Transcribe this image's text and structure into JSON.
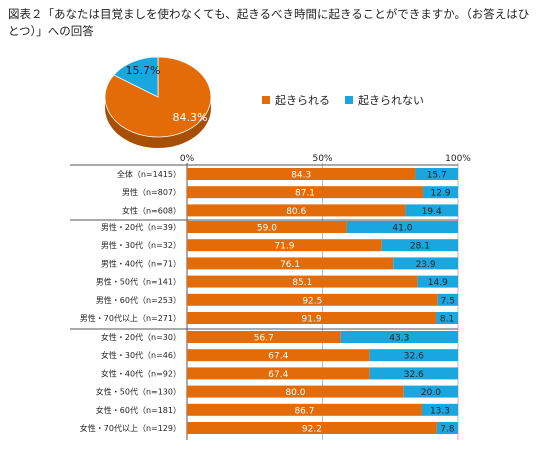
{
  "title": "図表２「あなたは目覚ましを使わなくても、起きるべき時間に起きることができますか。（お答えはひとつ）」への回答",
  "colors": {
    "yes": "#e36c09",
    "no": "#1aa7e0",
    "yes_dark": "#a84f06",
    "no_dark": "#11779f"
  },
  "chart_data": [
    {
      "type": "pie",
      "categories": [
        "起きられる",
        "起きられない"
      ],
      "values": [
        84.3,
        15.7
      ],
      "labels": [
        "84.3%",
        "15.7%"
      ],
      "legend_position": "right"
    },
    {
      "type": "bar",
      "stacked": true,
      "orientation": "horizontal",
      "xlim": [
        0,
        100
      ],
      "x_ticks": [
        "0%",
        "50%",
        "100%"
      ],
      "categories": [
        "全体（n=1415）",
        "男性（n=807）",
        "女性（n=608）",
        "男性・20代（n=39）",
        "男性・30代（n=32）",
        "男性・40代（n=71）",
        "男性・50代（n=141）",
        "男性・60代（n=253）",
        "男性・70代以上（n=271）",
        "女性・20代（n=30）",
        "女性・30代（n=46）",
        "女性・40代（n=92）",
        "女性・50代（n=130）",
        "女性・60代（n=181）",
        "女性・70代以上（n=129）"
      ],
      "series": [
        {
          "name": "起きられる",
          "values": [
            84.3,
            87.1,
            80.6,
            59.0,
            71.9,
            76.1,
            85.1,
            92.5,
            91.9,
            56.7,
            67.4,
            67.4,
            80.0,
            86.7,
            92.2
          ]
        },
        {
          "name": "起きられない",
          "values": [
            15.7,
            12.9,
            19.4,
            41.0,
            28.1,
            23.9,
            14.9,
            7.5,
            8.1,
            43.3,
            32.6,
            32.6,
            20.0,
            13.3,
            7.8
          ]
        }
      ]
    }
  ]
}
